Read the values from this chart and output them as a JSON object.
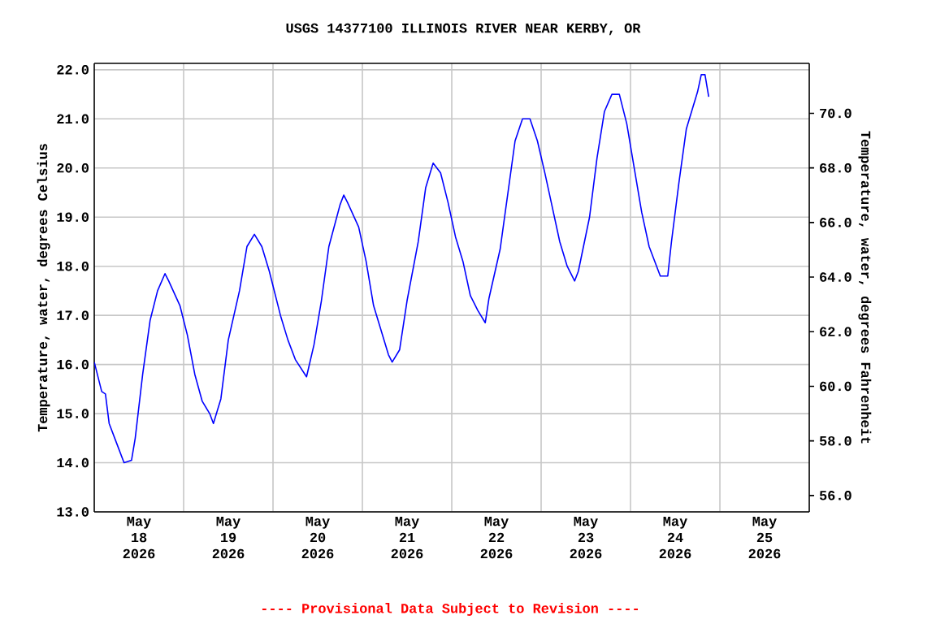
{
  "chart_data": {
    "type": "line",
    "title": "USGS 14377100 ILLINOIS RIVER NEAR KERBY, OR",
    "ylabel": "Temperature, water, degrees Celsius",
    "y2label": "Temperature, water, degrees Fahrenheit",
    "annotations": [
      "---- Provisional Data Subject to Revision ----"
    ],
    "x": [
      "2026-05-18T00:00",
      "2026-05-18T02:00",
      "2026-05-18T03:00",
      "2026-05-18T04:00",
      "2026-05-18T06:00",
      "2026-05-18T08:00",
      "2026-05-18T10:00",
      "2026-05-18T11:00",
      "2026-05-18T13:00",
      "2026-05-18T15:00",
      "2026-05-18T17:00",
      "2026-05-18T19:00",
      "2026-05-18T20:00",
      "2026-05-18T23:00",
      "2026-05-19T01:00",
      "2026-05-19T03:00",
      "2026-05-19T05:00",
      "2026-05-19T07:00",
      "2026-05-19T08:00",
      "2026-05-19T10:00",
      "2026-05-19T12:00",
      "2026-05-19T15:00",
      "2026-05-19T17:00",
      "2026-05-19T19:00",
      "2026-05-19T21:00",
      "2026-05-19T23:00",
      "2026-05-20T02:00",
      "2026-05-20T04:00",
      "2026-05-20T06:00",
      "2026-05-20T09:00",
      "2026-05-20T11:00",
      "2026-05-20T13:00",
      "2026-05-20T15:00",
      "2026-05-20T18:00",
      "2026-05-20T19:00",
      "2026-05-20T20:00",
      "2026-05-20T23:00",
      "2026-05-21T01:00",
      "2026-05-21T03:00",
      "2026-05-21T05:00",
      "2026-05-21T07:00",
      "2026-05-21T08:00",
      "2026-05-21T10:00",
      "2026-05-21T12:00",
      "2026-05-21T15:00",
      "2026-05-21T17:00",
      "2026-05-21T19:00",
      "2026-05-21T21:00",
      "2026-05-21T23:00",
      "2026-05-22T01:00",
      "2026-05-22T03:00",
      "2026-05-22T05:00",
      "2026-05-22T07:00",
      "2026-05-22T09:00",
      "2026-05-22T10:00",
      "2026-05-22T13:00",
      "2026-05-22T15:00",
      "2026-05-22T17:00",
      "2026-05-22T19:00",
      "2026-05-22T21:00",
      "2026-05-22T23:00",
      "2026-05-23T01:00",
      "2026-05-23T03:00",
      "2026-05-23T05:00",
      "2026-05-23T07:00",
      "2026-05-23T09:00",
      "2026-05-23T10:00",
      "2026-05-23T13:00",
      "2026-05-23T15:00",
      "2026-05-23T17:00",
      "2026-05-23T19:00",
      "2026-05-23T21:00",
      "2026-05-23T23:00",
      "2026-05-24T01:00",
      "2026-05-24T03:00",
      "2026-05-24T05:00",
      "2026-05-24T08:00",
      "2026-05-24T10:00",
      "2026-05-24T11:00",
      "2026-05-24T13:00",
      "2026-05-24T15:00",
      "2026-05-24T18:00",
      "2026-05-24T19:00",
      "2026-05-24T20:00",
      "2026-05-24T21:00"
    ],
    "xlim": [
      "2026-05-18T00:00",
      "2026-05-26T00:00"
    ],
    "xticks": [
      {
        "value": "2026-05-18T12:00",
        "label": "May 18 2026"
      },
      {
        "value": "2026-05-19T12:00",
        "label": "May 19 2026"
      },
      {
        "value": "2026-05-20T12:00",
        "label": "May 20 2026"
      },
      {
        "value": "2026-05-21T12:00",
        "label": "May 21 2026"
      },
      {
        "value": "2026-05-22T12:00",
        "label": "May 22 2026"
      },
      {
        "value": "2026-05-23T12:00",
        "label": "May 23 2026"
      },
      {
        "value": "2026-05-24T12:00",
        "label": "May 24 2026"
      },
      {
        "value": "2026-05-25T12:00",
        "label": "May 25 2026"
      },
      {
        "value": "2026-05-19T00:00",
        "label": null
      },
      {
        "value": "2026-05-20T00:00",
        "label": null
      },
      {
        "value": "2026-05-21T00:00",
        "label": null
      },
      {
        "value": "2026-05-22T00:00",
        "label": null
      },
      {
        "value": "2026-05-23T00:00",
        "label": null
      },
      {
        "value": "2026-05-24T00:00",
        "label": null
      },
      {
        "value": "2026-05-25T00:00",
        "label": null
      }
    ],
    "series": [
      {
        "color": "#0000ff",
        "values": [
          16.05,
          15.45,
          15.4,
          14.8,
          14.4,
          14.0,
          14.05,
          14.5,
          15.8,
          16.9,
          17.5,
          17.85,
          17.7,
          17.2,
          16.6,
          15.8,
          15.25,
          15.0,
          14.8,
          15.3,
          16.5,
          17.5,
          18.4,
          18.65,
          18.4,
          17.9,
          17.0,
          16.5,
          16.1,
          15.75,
          16.4,
          17.3,
          18.4,
          19.25,
          19.45,
          19.3,
          18.8,
          18.1,
          17.2,
          16.7,
          16.2,
          16.05,
          16.3,
          17.3,
          18.5,
          19.6,
          20.1,
          19.9,
          19.3,
          18.6,
          18.1,
          17.4,
          17.1,
          16.85,
          17.35,
          18.35,
          19.45,
          20.55,
          21.0,
          21.0,
          20.55,
          19.9,
          19.2,
          18.5,
          18.0,
          17.7,
          17.9,
          19.0,
          20.2,
          21.15,
          21.5,
          21.5,
          20.9,
          20.0,
          19.1,
          18.4,
          17.8,
          17.8,
          18.5,
          19.7,
          20.8,
          21.55,
          21.9,
          21.9,
          21.45
        ]
      }
    ],
    "ylim": [
      13,
      22.13
    ],
    "yticks": [
      {
        "value": 13,
        "label": "13.0"
      },
      {
        "value": 14,
        "label": "14.0"
      },
      {
        "value": 15,
        "label": "15.0"
      },
      {
        "value": 16,
        "label": "16.0"
      },
      {
        "value": 17,
        "label": "17.0"
      },
      {
        "value": 18,
        "label": "18.0"
      },
      {
        "value": 19,
        "label": "19.0"
      },
      {
        "value": 20,
        "label": "20.0"
      },
      {
        "value": 21,
        "label": "21.0"
      },
      {
        "value": 22,
        "label": "22.0"
      }
    ],
    "y2lim": [
      55.4,
      71.83
    ],
    "y2ticks": [
      {
        "value": 56,
        "label": "56.0"
      },
      {
        "value": 58,
        "label": "58.0"
      },
      {
        "value": 60,
        "label": "60.0"
      },
      {
        "value": 62,
        "label": "62.0"
      },
      {
        "value": 64,
        "label": "64.0"
      },
      {
        "value": 66,
        "label": "66.0"
      },
      {
        "value": 68,
        "label": "68.0"
      },
      {
        "value": 70,
        "label": "70.0"
      }
    ],
    "grid": true,
    "marker": "none",
    "line_style": "solid"
  }
}
